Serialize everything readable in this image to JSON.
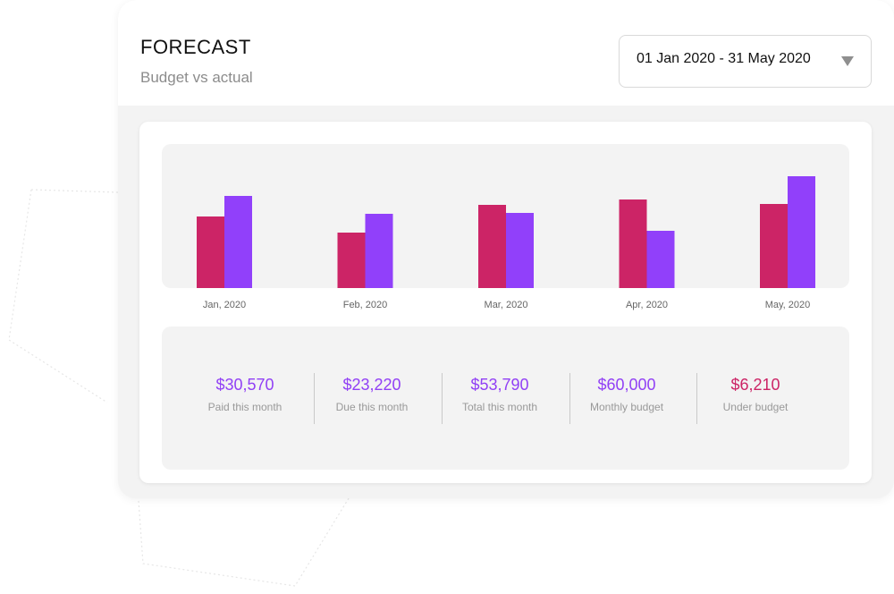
{
  "header": {
    "title": "FORECAST",
    "subtitle": "Budget vs actual",
    "date_range": "01 Jan 2020 - 31 May 2020"
  },
  "chart_data": {
    "type": "bar",
    "categories": [
      "Jan, 2020",
      "Feb, 2020",
      "Mar, 2020",
      "Apr, 2020",
      "May, 2020"
    ],
    "series": [
      {
        "color": "#cc2466",
        "values": [
          80,
          62,
          93,
          99,
          94
        ]
      },
      {
        "color": "#9140fa",
        "values": [
          103,
          83,
          84,
          64,
          125
        ]
      }
    ],
    "ylim": [
      0,
      161
    ],
    "grid": false,
    "legend": "none"
  },
  "stats": [
    {
      "value": "$30,570",
      "label": "Paid this month"
    },
    {
      "value": "$23,220",
      "label": "Due this month"
    },
    {
      "value": "$53,790",
      "label": "Total this month"
    },
    {
      "value": "$60,000",
      "label": "Monthly budget"
    },
    {
      "value": "$6,210",
      "label": "Under budget"
    }
  ],
  "colors": {
    "accent_purple": "#9140f5",
    "accent_magenta": "#cc2466",
    "panel_bg": "#f3f3f3"
  }
}
